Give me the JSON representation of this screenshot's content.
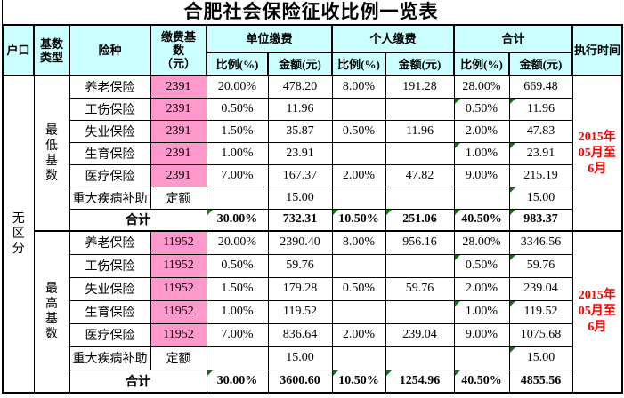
{
  "title": "合肥社会保险征收比例一览表",
  "header": {
    "hukou": "户口",
    "base_type_lines": [
      "基数",
      "类型"
    ],
    "insurance": "险种",
    "base_lines": [
      "缴费基",
      "数",
      "（元）"
    ],
    "employer": "单位缴费",
    "personal": "个人缴费",
    "total": "合计",
    "ratio": "比例(%)",
    "amount": "金额(元)",
    "exec_time": "执行时间"
  },
  "hukou_lines": [
    "无",
    "区",
    "分"
  ],
  "colors": {
    "header_bg": "#CCFFFF",
    "base_cell_bg": "#FF99CC",
    "date_text": "#FF0000",
    "marker": "#008000"
  },
  "blocks": [
    {
      "base_type_lines": [
        "最",
        "低",
        "基",
        "数"
      ],
      "exec_lines": [
        "2015年",
        "05月至",
        "6月"
      ],
      "rows": [
        {
          "name": "养老保险",
          "base": "2391",
          "er": "20.00%",
          "ea": "478.20",
          "pr": "8.00%",
          "pa": "191.28",
          "tr": "28.00%",
          "ta": "669.48"
        },
        {
          "name": "工伤保险",
          "base": "2391",
          "er": "0.50%",
          "ea": "11.96",
          "pr": "",
          "pa": "",
          "tr": "0.50%",
          "ta": "11.96"
        },
        {
          "name": "失业保险",
          "base": "2391",
          "er": "1.50%",
          "ea": "35.87",
          "pr": "0.50%",
          "pa": "11.96",
          "tr": "2.00%",
          "ta": "47.83"
        },
        {
          "name": "生育保险",
          "base": "2391",
          "er": "1.00%",
          "ea": "23.91",
          "pr": "",
          "pa": "",
          "tr": "1.00%",
          "ta": "23.91"
        },
        {
          "name": "医疗保险",
          "base": "2391",
          "er": "7.00%",
          "ea": "167.37",
          "pr": "2.00%",
          "pa": "47.82",
          "tr": "9.00%",
          "ta": "215.19"
        },
        {
          "name": "重大疾病补助",
          "base": "定额",
          "er": "",
          "ea": "15.00",
          "pr": "",
          "pa": "",
          "tr": "",
          "ta": "15.00"
        }
      ],
      "total": {
        "label": "合计",
        "er": "30.00%",
        "ea": "732.31",
        "pr": "10.50%",
        "pa": "251.06",
        "tr": "40.50%",
        "ta": "983.37"
      }
    },
    {
      "base_type_lines": [
        "最",
        "高",
        "基",
        "数"
      ],
      "exec_lines": [
        "2015年",
        "05月至",
        "6月"
      ],
      "rows": [
        {
          "name": "养老保险",
          "base": "11952",
          "er": "20.00%",
          "ea": "2390.40",
          "pr": "8.00%",
          "pa": "956.16",
          "tr": "28.00%",
          "ta": "3346.56"
        },
        {
          "name": "工伤保险",
          "base": "11952",
          "er": "0.50%",
          "ea": "59.76",
          "pr": "",
          "pa": "",
          "tr": "0.50%",
          "ta": "59.76"
        },
        {
          "name": "失业保险",
          "base": "11952",
          "er": "1.50%",
          "ea": "179.28",
          "pr": "0.50%",
          "pa": "59.76",
          "tr": "2.00%",
          "ta": "239.04"
        },
        {
          "name": "生育保险",
          "base": "11952",
          "er": "1.00%",
          "ea": "119.52",
          "pr": "",
          "pa": "",
          "tr": "1.00%",
          "ta": "119.52"
        },
        {
          "name": "医疗保险",
          "base": "11952",
          "er": "7.00%",
          "ea": "836.64",
          "pr": "2.00%",
          "pa": "239.04",
          "tr": "9.00%",
          "ta": "1075.68"
        },
        {
          "name": "重大疾病补助",
          "base": "定额",
          "er": "",
          "ea": "15.00",
          "pr": "",
          "pa": "",
          "tr": "",
          "ta": "15.00"
        }
      ],
      "total": {
        "label": "合计",
        "er": "30.00%",
        "ea": "3600.60",
        "pr": "10.50%",
        "pa": "1254.96",
        "tr": "40.50%",
        "ta": "4855.56"
      }
    }
  ]
}
